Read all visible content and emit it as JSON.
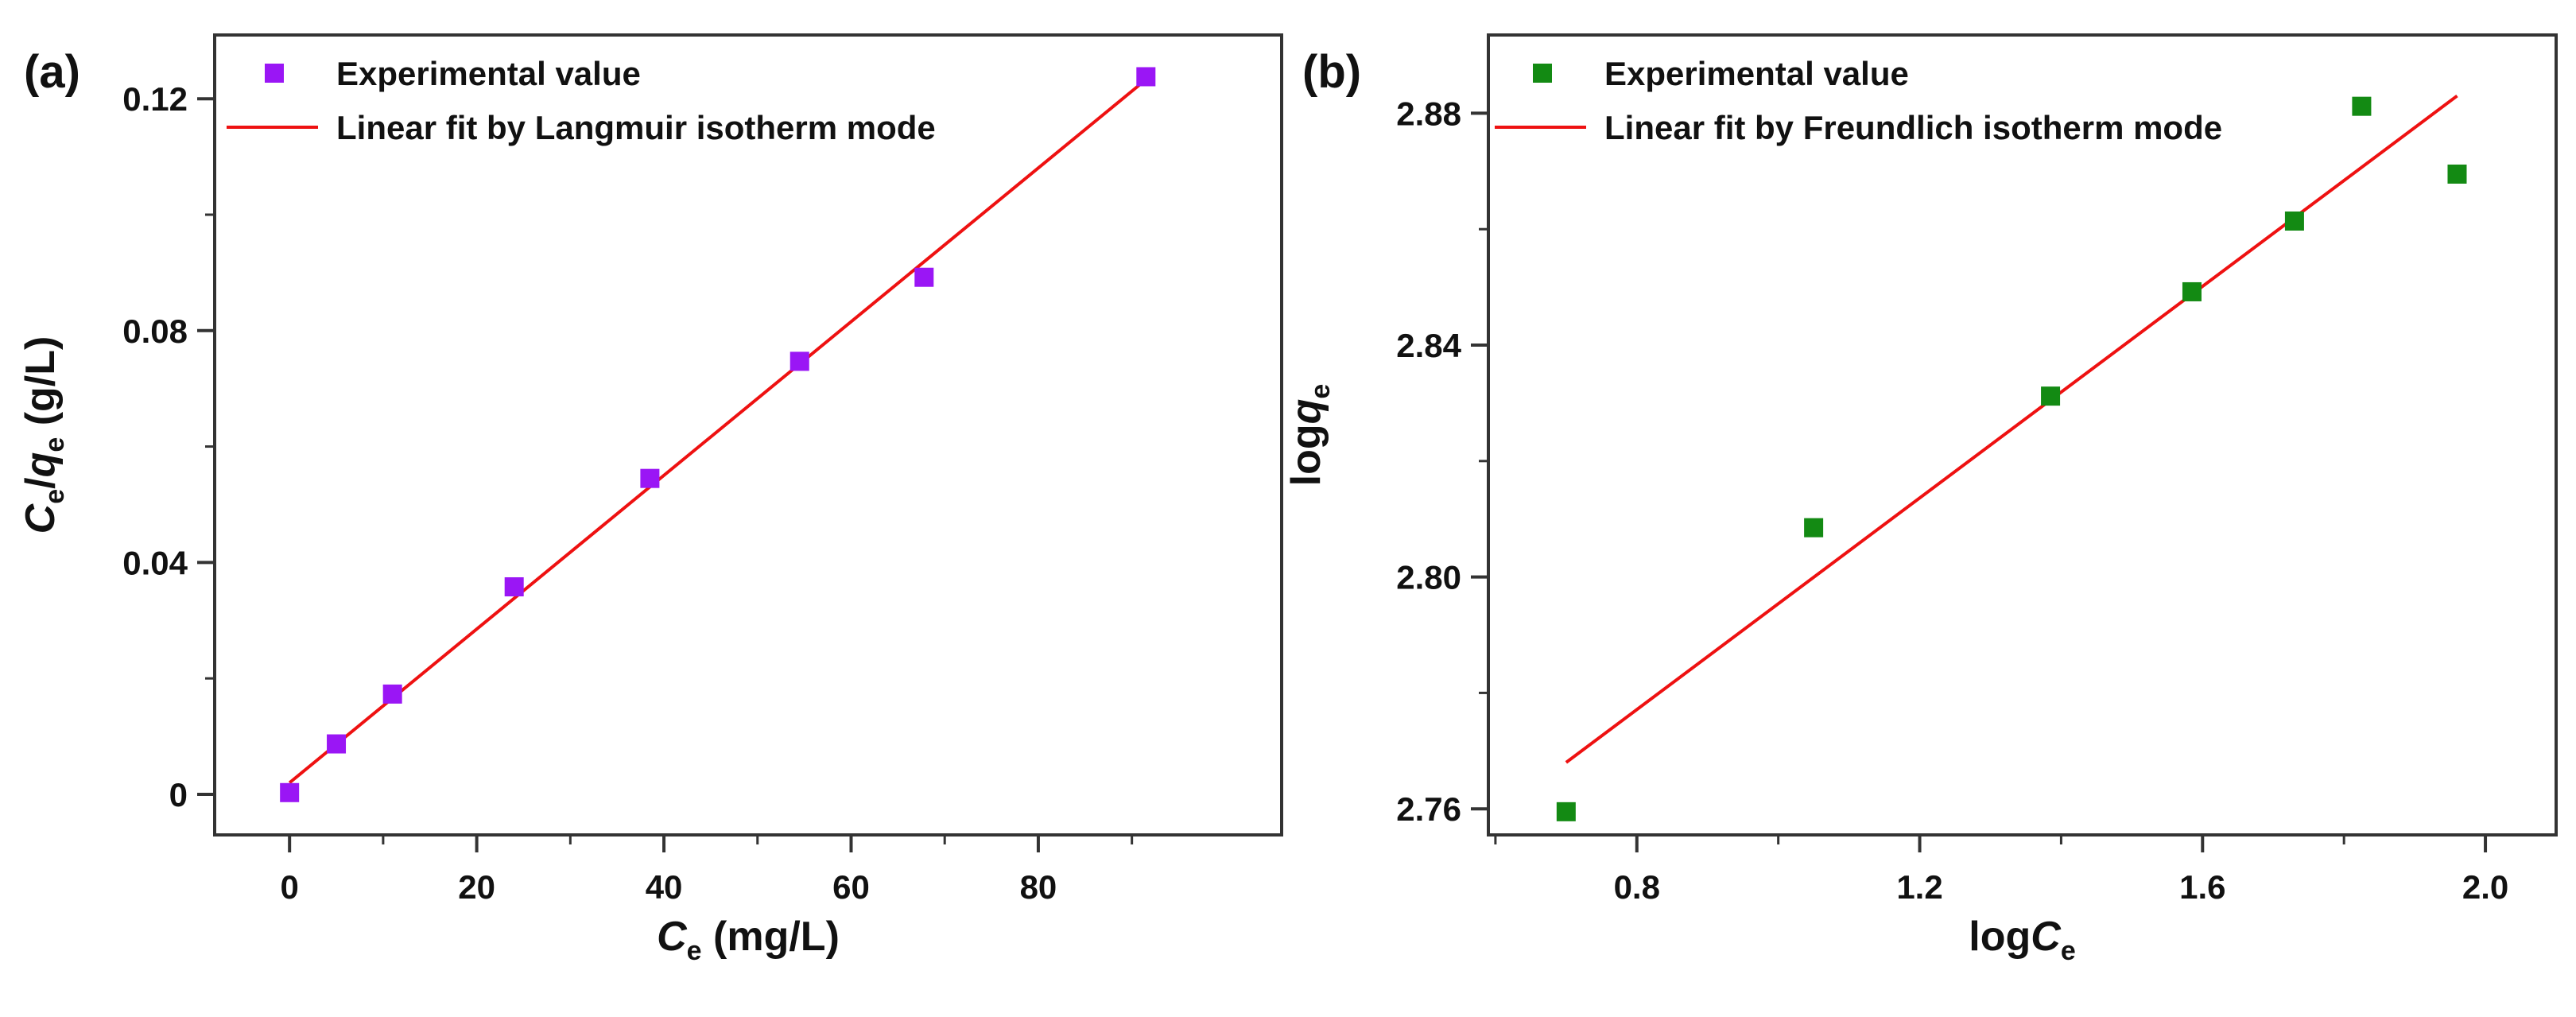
{
  "colors": {
    "axis": "#333333",
    "fit_line": "#ee1111",
    "series_a": "#9a16f5",
    "series_b": "#138a13"
  },
  "chart_data": [
    {
      "type": "scatter",
      "panel_label": "(a)",
      "title": "",
      "xlabel": {
        "italic": "C",
        "sub": "e",
        "rest": " (mg/L)"
      },
      "ylabel": {
        "italic1": "C",
        "sub1": "e",
        "slash": "/",
        "italic2": "q",
        "sub2": "e",
        "rest": " (g/L)"
      },
      "xlim": [
        -8,
        106
      ],
      "ylim": [
        -0.007,
        0.131
      ],
      "xticks": [
        0,
        20,
        40,
        60,
        80
      ],
      "xtick_labels": [
        "0",
        "20",
        "40",
        "60",
        "80"
      ],
      "yticks": [
        0,
        0.04,
        0.08,
        0.12
      ],
      "ytick_labels": [
        "0",
        "0.04",
        "0.08",
        "0.12"
      ],
      "grid": false,
      "legend_position": "top-left",
      "legend": {
        "scatter": "Experimental value",
        "line": "Linear fit by Langmuir isotherm mode"
      },
      "series": [
        {
          "name": "Experimental value",
          "kind": "scatter",
          "x": [
            0,
            5,
            11,
            24,
            38.5,
            54.5,
            67.8,
            91.5
          ],
          "y": [
            0.0003,
            0.0087,
            0.0173,
            0.0358,
            0.0545,
            0.0747,
            0.0892,
            0.1238
          ]
        },
        {
          "name": "Linear fit by Langmuir isotherm mode",
          "kind": "line",
          "x": [
            0,
            91.5
          ],
          "y": [
            0.002,
            0.1233
          ]
        }
      ]
    },
    {
      "type": "scatter",
      "panel_label": "(b)",
      "title": "",
      "xlabel": {
        "pre": "log",
        "italic": "C",
        "sub": "e"
      },
      "ylabel": {
        "pre": "log",
        "italic": "q",
        "sub": "e"
      },
      "xlim": [
        0.59,
        2.1
      ],
      "ylim": [
        2.7555,
        2.8935
      ],
      "xticks": [
        0.8,
        1.2,
        1.6,
        2.0
      ],
      "xtick_labels": [
        "0.8",
        "1.2",
        "1.6",
        "2.0"
      ],
      "yticks": [
        2.76,
        2.8,
        2.84,
        2.88
      ],
      "ytick_labels": [
        "2.76",
        "2.80",
        "2.84",
        "2.88"
      ],
      "grid": false,
      "legend_position": "top-left",
      "legend": {
        "scatter": "Experimental value",
        "line": "Linear fit by Freundlich isotherm mode"
      },
      "series": [
        {
          "name": "Experimental value",
          "kind": "scatter",
          "x": [
            0.7,
            1.05,
            1.385,
            1.585,
            1.73,
            1.825,
            1.96
          ],
          "y": [
            2.7595,
            2.8085,
            2.8312,
            2.8492,
            2.8614,
            2.8812,
            2.8695
          ]
        },
        {
          "name": "Linear fit by Freundlich isotherm mode",
          "kind": "line",
          "x": [
            0.7,
            1.96
          ],
          "y": [
            2.768,
            2.883
          ]
        }
      ]
    }
  ]
}
